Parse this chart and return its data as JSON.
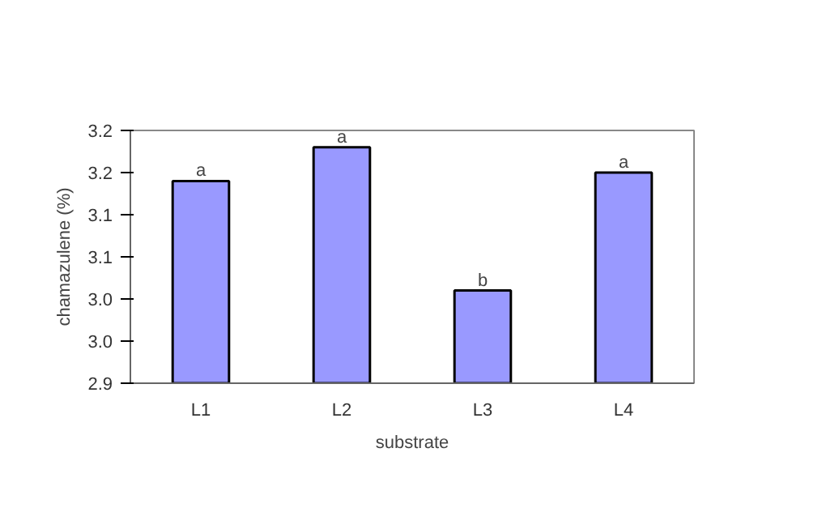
{
  "chart_data": {
    "type": "bar",
    "xlabel": "substrate",
    "ylabel": "chamazulene (%)",
    "categories": [
      "L1",
      "L2",
      "L3",
      "L4"
    ],
    "values": [
      3.14,
      3.18,
      3.01,
      3.15
    ],
    "color": "#9999ff",
    "ylim": [
      2.9,
      3.2
    ],
    "yticks": [
      {
        "value": 2.9,
        "label": "2.9"
      },
      {
        "value": 2.95,
        "label": "3.0"
      },
      {
        "value": 3.0,
        "label": "3.0"
      },
      {
        "value": 3.05,
        "label": "3.1"
      },
      {
        "value": 3.1,
        "label": "3.1"
      },
      {
        "value": 3.15,
        "label": "3.2"
      },
      {
        "value": 3.2,
        "label": "3.2"
      }
    ],
    "annotations": [
      {
        "text": "a",
        "x": "L1",
        "y": 3.14
      },
      {
        "text": "a",
        "x": "L2",
        "y": 3.18
      },
      {
        "text": "b",
        "x": "L3",
        "y": 3.01
      },
      {
        "text": "a",
        "x": "L4",
        "y": 3.15
      }
    ],
    "grid": false
  }
}
